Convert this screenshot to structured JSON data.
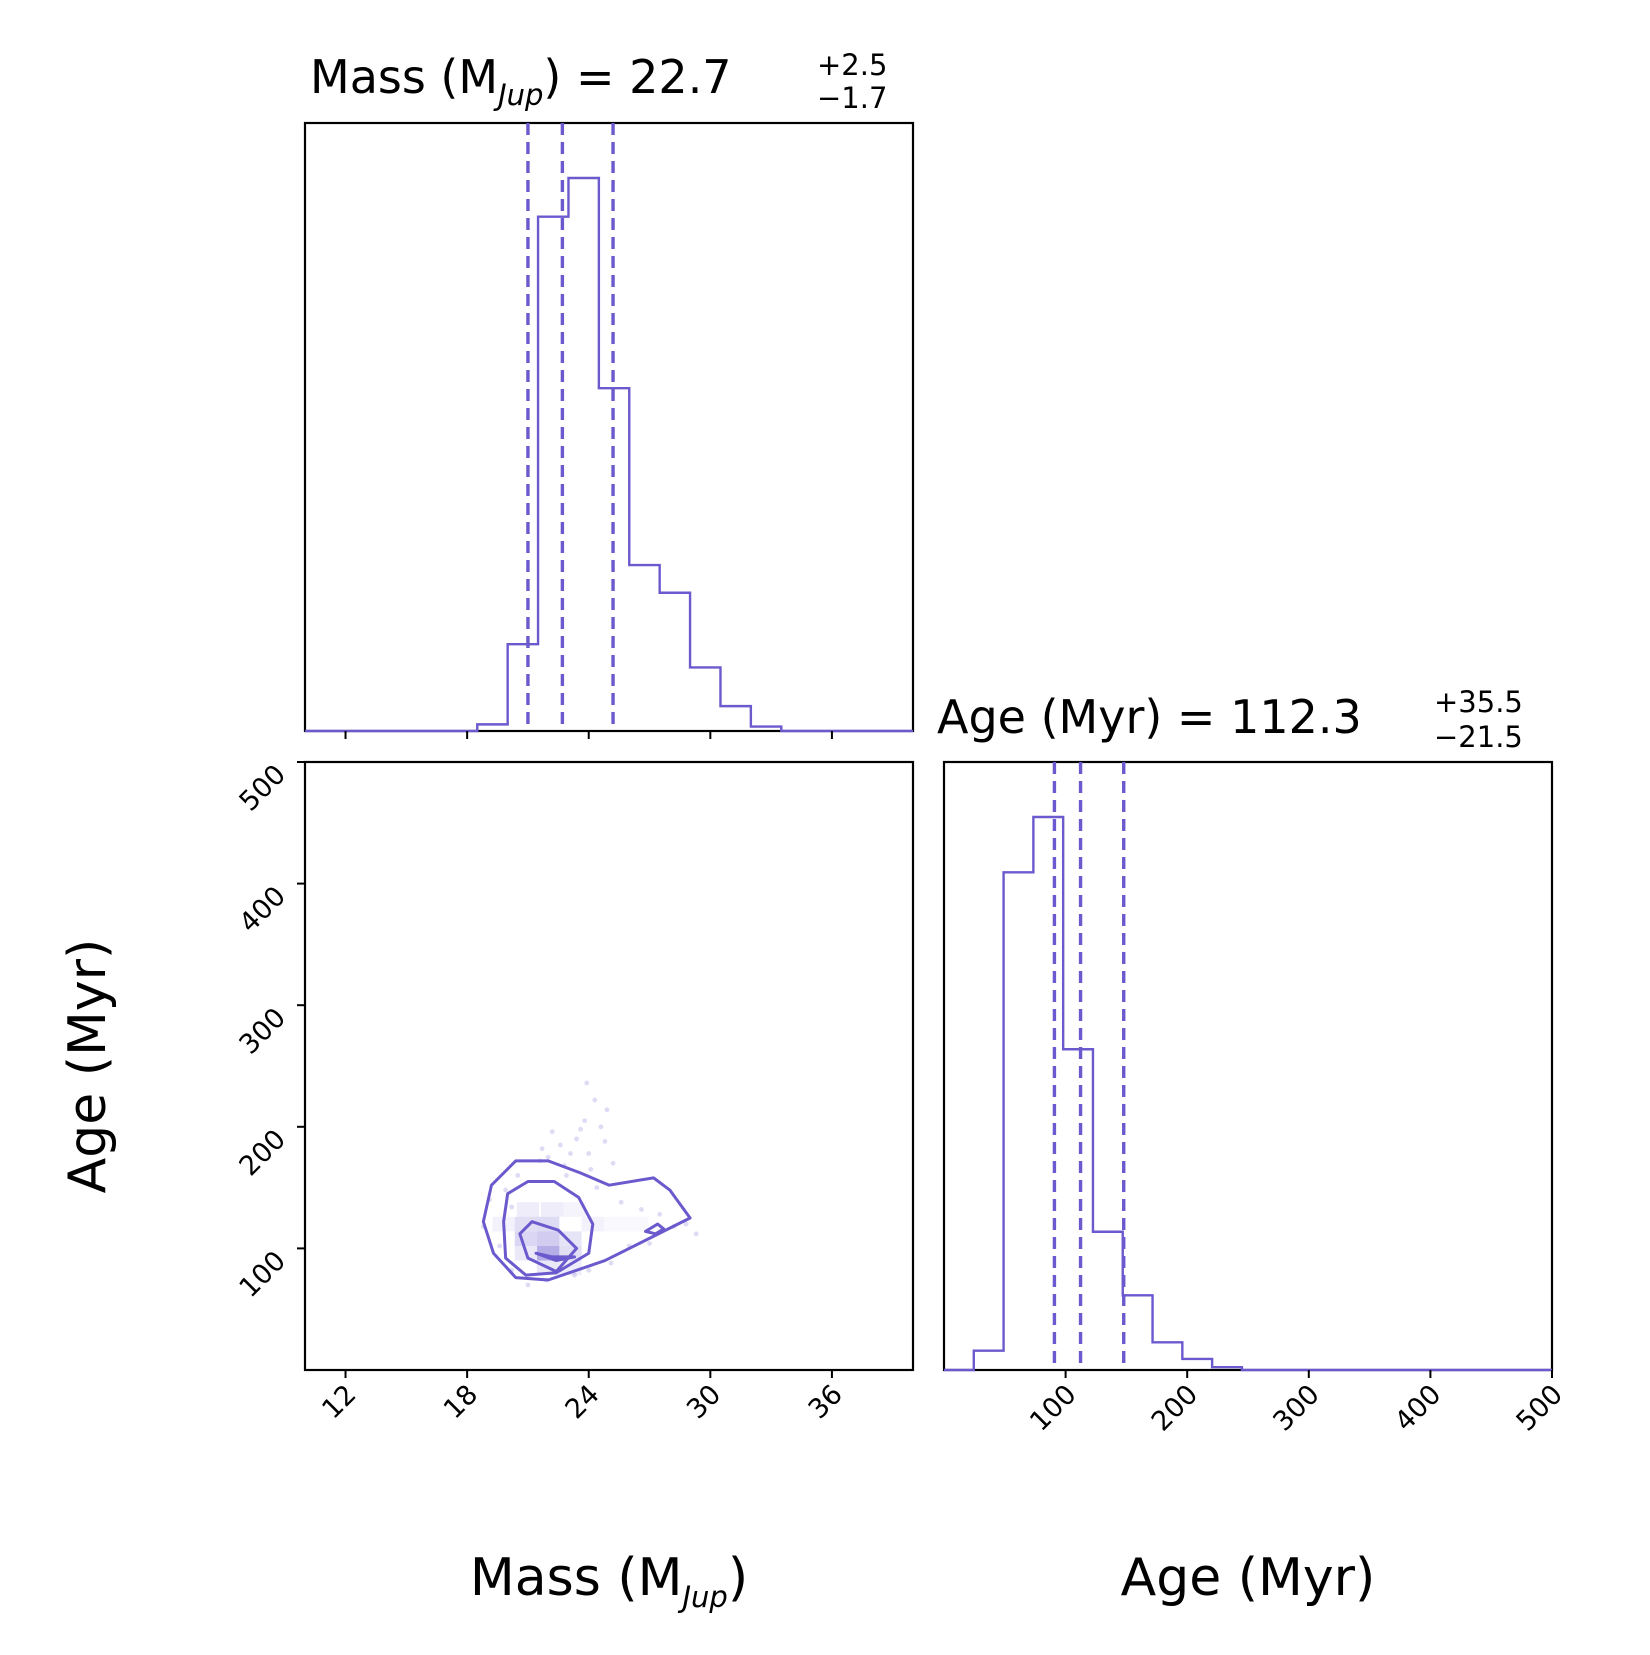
{
  "chart_data": {
    "type": "corner",
    "color": "#6a5acd",
    "mass": {
      "title_prefix": "Mass (M",
      "title_sub": "Jup",
      "title_suffix": ") = 22.7",
      "median": "22.7",
      "plus": "+2.5",
      "minus": "−1.7",
      "axis_label_prefix": "Mass (M",
      "axis_label_sub": "Jup",
      "axis_label_suffix": ")",
      "xlim": [
        10,
        40
      ],
      "ticks": [
        "12",
        "18",
        "24",
        "30",
        "36"
      ],
      "quantiles": [
        21.0,
        22.7,
        25.2
      ],
      "hist_bins": [
        8,
        9.5,
        11,
        12.5,
        14,
        15.5,
        17,
        18.5,
        20,
        21.5,
        23,
        24.5,
        26,
        27.5,
        29,
        30.5,
        32,
        33.5,
        35,
        36.5,
        38,
        39.5,
        41
      ],
      "hist_counts": [
        0,
        0,
        0,
        0,
        0,
        0,
        0,
        0.012,
        0.157,
        0.93,
        1.0,
        0.62,
        0.3,
        0.25,
        0.115,
        0.045,
        0.008,
        0,
        0,
        0,
        0,
        0
      ]
    },
    "age": {
      "title_prefix": "Age (Myr) = 112.3",
      "median": "112.3",
      "plus": "+35.5",
      "minus": "−21.5",
      "axis_label": "Age (Myr)",
      "lim": [
        0,
        500
      ],
      "ticks": [
        "100",
        "200",
        "300",
        "400",
        "500"
      ],
      "quantiles": [
        90.8,
        112.3,
        147.8
      ],
      "hist_bins": [
        0,
        24.5,
        49,
        73.5,
        98,
        122.5,
        147,
        171.5,
        196,
        220.5,
        245,
        269.5,
        294,
        318.5,
        343,
        367.5,
        392,
        416.5,
        441,
        465.5,
        490,
        514.5
      ],
      "hist_counts": [
        0,
        0.035,
        0.9,
        1.0,
        0.58,
        0.25,
        0.135,
        0.05,
        0.02,
        0.005,
        0,
        0,
        0,
        0,
        0,
        0,
        0,
        0,
        0,
        0,
        0
      ]
    },
    "joint": {
      "xlabel": "Mass (M_Jup)",
      "ylabel": "Age (Myr)",
      "center": [
        22.7,
        112.3
      ],
      "contours": [
        [
          [
            22.4,
            90
          ],
          [
            23.3,
            93
          ],
          [
            22.2,
            93
          ],
          [
            21.4,
            96
          ]
        ],
        [
          [
            21.2,
            122
          ],
          [
            22.5,
            115
          ],
          [
            23.4,
            100
          ],
          [
            22.4,
            81
          ],
          [
            21.0,
            92
          ],
          [
            20.6,
            112
          ]
        ],
        [
          [
            20.0,
            145
          ],
          [
            21.0,
            155
          ],
          [
            22.3,
            155
          ],
          [
            23.5,
            142
          ],
          [
            24.2,
            120
          ],
          [
            24.0,
            96
          ],
          [
            22.4,
            80
          ],
          [
            20.9,
            78
          ],
          [
            19.9,
            92
          ],
          [
            19.8,
            122
          ]
        ],
        [
          [
            18.8,
            122
          ],
          [
            19.2,
            152
          ],
          [
            20.4,
            172
          ],
          [
            22.0,
            172
          ],
          [
            23.6,
            162
          ],
          [
            25.0,
            152
          ],
          [
            27.2,
            158
          ],
          [
            28.0,
            148
          ],
          [
            29.0,
            125
          ],
          [
            27.2,
            110
          ],
          [
            24.8,
            90
          ],
          [
            22.0,
            74
          ],
          [
            20.4,
            76
          ],
          [
            19.3,
            96
          ]
        ],
        [
          [
            26.8,
            114
          ],
          [
            27.4,
            120
          ],
          [
            27.7,
            116
          ],
          [
            27.3,
            112
          ]
        ]
      ],
      "density_cells": [
        {
          "m": 22.0,
          "a": 96,
          "alpha": 0.9
        },
        {
          "m": 22.0,
          "a": 108,
          "alpha": 0.55
        },
        {
          "m": 20.9,
          "a": 108,
          "alpha": 0.45
        },
        {
          "m": 20.9,
          "a": 120,
          "alpha": 0.35
        },
        {
          "m": 22.0,
          "a": 120,
          "alpha": 0.4
        },
        {
          "m": 23.1,
          "a": 108,
          "alpha": 0.3
        },
        {
          "m": 23.1,
          "a": 96,
          "alpha": 0.35
        },
        {
          "m": 19.8,
          "a": 120,
          "alpha": 0.15
        },
        {
          "m": 24.2,
          "a": 120,
          "alpha": 0.15
        },
        {
          "m": 21.0,
          "a": 132,
          "alpha": 0.2
        },
        {
          "m": 22.2,
          "a": 132,
          "alpha": 0.2
        },
        {
          "m": 23.3,
          "a": 132,
          "alpha": 0.12
        },
        {
          "m": 25.3,
          "a": 120,
          "alpha": 0.08
        },
        {
          "m": 26.4,
          "a": 120,
          "alpha": 0.08
        },
        {
          "m": 20.9,
          "a": 96,
          "alpha": 0.25
        },
        {
          "m": 23.1,
          "a": 84,
          "alpha": 0.2
        },
        {
          "m": 22.0,
          "a": 84,
          "alpha": 0.25
        }
      ],
      "scatter_points": [
        [
          23.8,
          205
        ],
        [
          24.3,
          222
        ],
        [
          24.6,
          200
        ],
        [
          23.4,
          190
        ],
        [
          22.6,
          185
        ],
        [
          24.0,
          178
        ],
        [
          25.2,
          170
        ],
        [
          21.7,
          182
        ],
        [
          23.1,
          178
        ],
        [
          24.8,
          188
        ],
        [
          22.2,
          196
        ],
        [
          23.9,
          236
        ],
        [
          24.9,
          214
        ],
        [
          21.6,
          172
        ],
        [
          22.8,
          168
        ],
        [
          20.5,
          160
        ],
        [
          19.9,
          148
        ],
        [
          19.1,
          140
        ],
        [
          18.8,
          118
        ],
        [
          19.6,
          102
        ],
        [
          21.9,
          74
        ],
        [
          23.3,
          78
        ],
        [
          25.1,
          88
        ],
        [
          26.0,
          102
        ],
        [
          27.0,
          104
        ],
        [
          28.2,
          118
        ],
        [
          28.8,
          120
        ],
        [
          29.3,
          112
        ],
        [
          26.6,
          132
        ],
        [
          25.6,
          138
        ],
        [
          27.5,
          128
        ],
        [
          24.4,
          150
        ],
        [
          22.9,
          160
        ],
        [
          20.2,
          134
        ],
        [
          21.0,
          70
        ],
        [
          24.0,
          82
        ],
        [
          20.2,
          82
        ],
        [
          23.6,
          198
        ],
        [
          24.1,
          165
        ],
        [
          22.0,
          175
        ]
      ]
    }
  }
}
